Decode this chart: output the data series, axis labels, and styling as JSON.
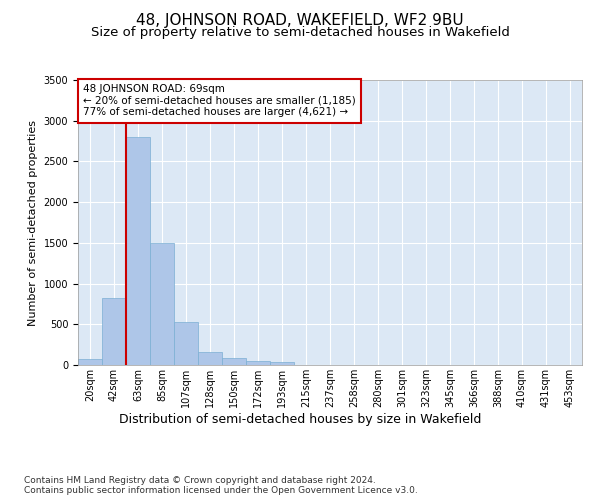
{
  "title": "48, JOHNSON ROAD, WAKEFIELD, WF2 9BU",
  "subtitle": "Size of property relative to semi-detached houses in Wakefield",
  "xlabel": "Distribution of semi-detached houses by size in Wakefield",
  "ylabel": "Number of semi-detached properties",
  "categories": [
    "20sqm",
    "42sqm",
    "63sqm",
    "85sqm",
    "107sqm",
    "128sqm",
    "150sqm",
    "172sqm",
    "193sqm",
    "215sqm",
    "237sqm",
    "258sqm",
    "280sqm",
    "301sqm",
    "323sqm",
    "345sqm",
    "366sqm",
    "388sqm",
    "410sqm",
    "431sqm",
    "453sqm"
  ],
  "values": [
    75,
    820,
    2800,
    1500,
    530,
    165,
    80,
    55,
    35,
    0,
    0,
    0,
    0,
    0,
    0,
    0,
    0,
    0,
    0,
    0,
    0
  ],
  "bar_color": "#aec6e8",
  "bar_edge_color": "#7bafd4",
  "vline_color": "#cc0000",
  "vline_x_index": 2,
  "annotation_text": "48 JOHNSON ROAD: 69sqm\n← 20% of semi-detached houses are smaller (1,185)\n77% of semi-detached houses are larger (4,621) →",
  "annotation_box_facecolor": "#ffffff",
  "annotation_box_edgecolor": "#cc0000",
  "ylim": [
    0,
    3500
  ],
  "yticks": [
    0,
    500,
    1000,
    1500,
    2000,
    2500,
    3000,
    3500
  ],
  "plot_bg_color": "#dce8f5",
  "grid_color": "#ffffff",
  "footer": "Contains HM Land Registry data © Crown copyright and database right 2024.\nContains public sector information licensed under the Open Government Licence v3.0.",
  "title_fontsize": 11,
  "subtitle_fontsize": 9.5,
  "xlabel_fontsize": 9,
  "ylabel_fontsize": 8,
  "annot_fontsize": 7.5,
  "tick_fontsize": 7,
  "footer_fontsize": 6.5
}
